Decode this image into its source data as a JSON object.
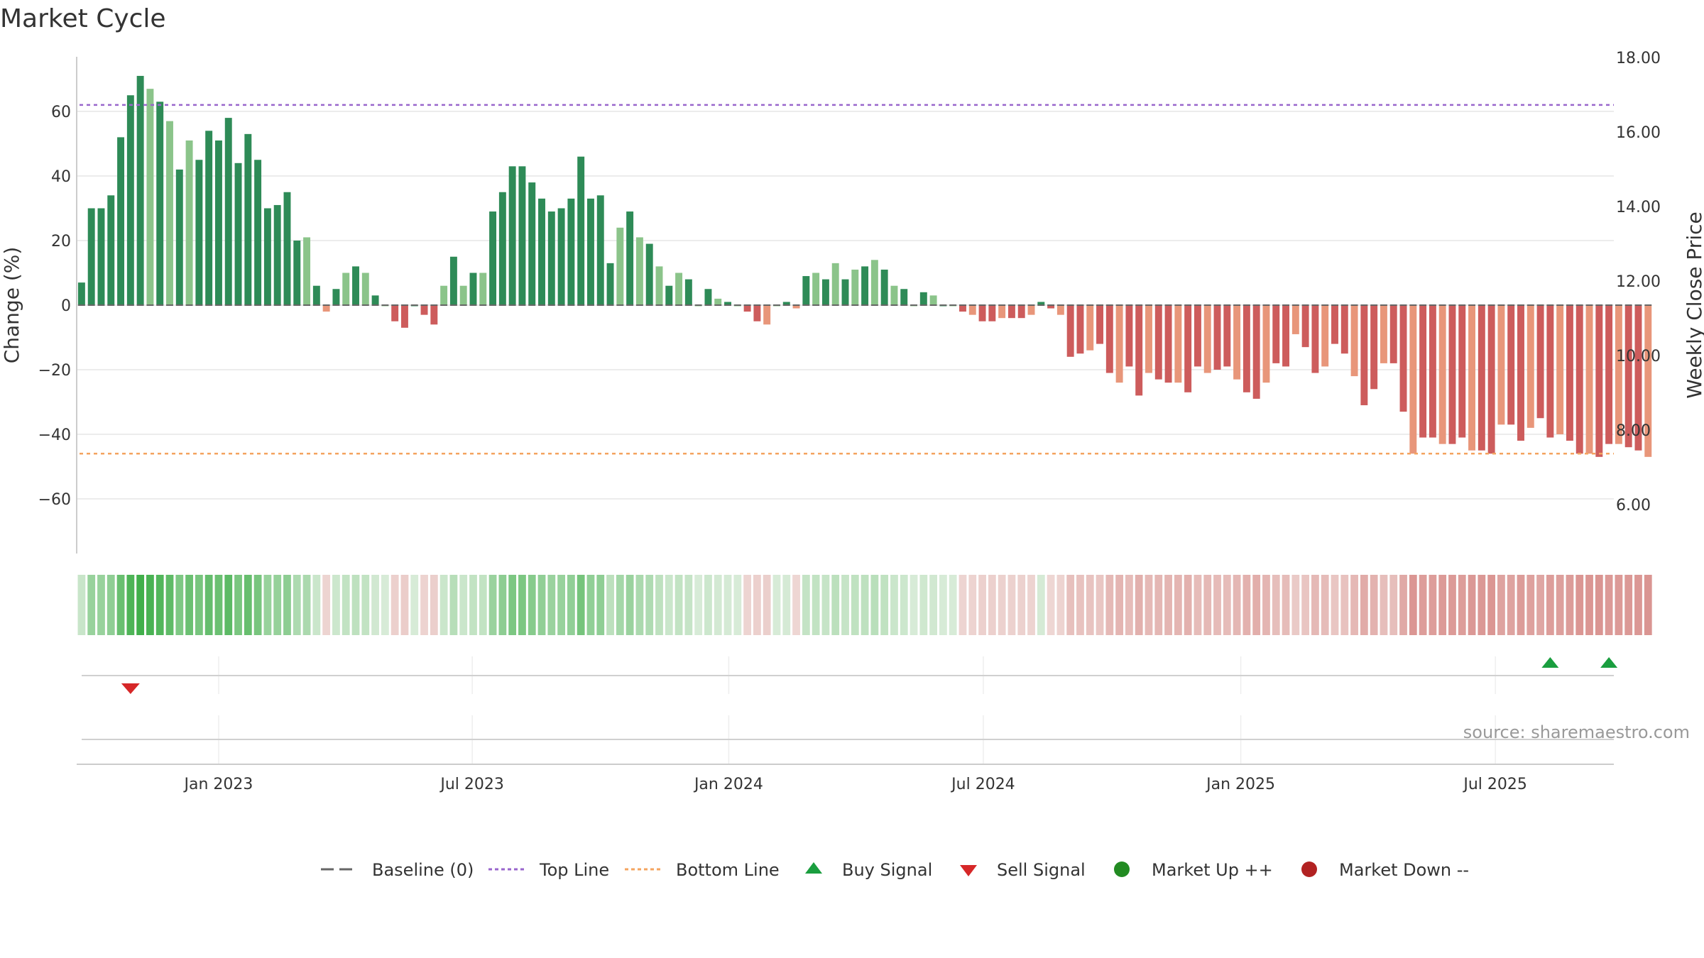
{
  "chart_data": {
    "type": "bar",
    "title": "Market Cycle",
    "ylabel": "Change (%)",
    "y2label": "Weekly Close Price",
    "ylim": [
      -77,
      77
    ],
    "y2lim": [
      4.85,
      18.25
    ],
    "yticks": [
      "60",
      "40",
      "20",
      "0",
      "−20",
      "−40",
      "−60"
    ],
    "y2ticks": [
      "18.00",
      "16.00",
      "14.00",
      "12.00",
      "10.00",
      "8.00",
      "6.00"
    ],
    "xticks": [
      "Jan 2023",
      "Jul 2023",
      "Jan 2024",
      "Jul 2024",
      "Jan 2025",
      "Jul 2025"
    ],
    "xrange_weeks": 157,
    "xtick_weeks": [
      14.5,
      40.4,
      66.6,
      92.6,
      118.9,
      144.9
    ],
    "top_line": 62,
    "bottom_line": -46,
    "baseline": 0,
    "series": [
      {
        "name": "Change (%)",
        "values": [
          7,
          30,
          30,
          34,
          52,
          65,
          71,
          67,
          63,
          57,
          42,
          51,
          45,
          54,
          51,
          58,
          44,
          53,
          45,
          30,
          31,
          35,
          20,
          21,
          6,
          -2,
          5,
          10,
          12,
          10,
          3,
          0,
          -5,
          -7,
          0,
          -3,
          -6,
          6,
          15,
          6,
          10,
          10,
          29,
          35,
          43,
          43,
          38,
          33,
          29,
          30,
          33,
          46,
          33,
          34,
          13,
          24,
          29,
          21,
          19,
          12,
          6,
          10,
          8,
          0,
          5,
          2,
          1,
          0,
          -2,
          -5,
          -6,
          0,
          1,
          -1,
          9,
          10,
          8,
          13,
          8,
          11,
          12,
          14,
          11,
          6,
          5,
          0,
          4,
          3,
          0,
          0,
          -2,
          -3,
          -5,
          -5,
          -4,
          -4,
          -4,
          -3,
          1,
          -1,
          -3,
          -16,
          -15,
          -14,
          -12,
          -21,
          -24,
          -19,
          -28,
          -21,
          -23,
          -24,
          -24,
          -27,
          -19,
          -21,
          -20,
          -19,
          -23,
          -27,
          -29,
          -24,
          -18,
          -19,
          -9,
          -13,
          -21,
          -19,
          -12,
          -15,
          -22,
          -31,
          -26,
          -18,
          -18,
          -33,
          -46,
          -41,
          -41,
          -43,
          -43,
          -41,
          -45,
          -45,
          -46,
          -37,
          -37,
          -42,
          -38,
          -35,
          -41,
          -40,
          -42,
          -46,
          -46,
          -47,
          -43,
          -43,
          -44,
          -45,
          -47
        ]
      }
    ],
    "signals": [
      {
        "name": "Sell Signal",
        "week": 5.5
      },
      {
        "name": "Buy Signal",
        "week": 150.5
      },
      {
        "name": "Buy Signal",
        "week": 156.5
      }
    ],
    "colors": {
      "up_strong": "#2e8b57",
      "up_weak": "#8bc48a",
      "down_strong": "#cd5c5c",
      "down_weak": "#e8967a",
      "top_line": "#9966cc",
      "bottom_line": "#f4a460",
      "buy": "#1a9e3f",
      "sell": "#d62728",
      "market_up": "#228b22",
      "market_down": "#b22222",
      "baseline": "#666666"
    },
    "legend": [
      {
        "label": "Baseline (0)",
        "marker": "dash"
      },
      {
        "label": "Top Line",
        "marker": "dot-purple"
      },
      {
        "label": "Bottom Line",
        "marker": "dot-orange"
      },
      {
        "label": "Buy Signal",
        "marker": "triangle-up"
      },
      {
        "label": "Sell Signal",
        "marker": "triangle-down"
      },
      {
        "label": "Market Up ++",
        "marker": "circle-green"
      },
      {
        "label": "Market Down --",
        "marker": "circle-red"
      }
    ],
    "legend_position": "bottom",
    "grid": true
  },
  "source_text": "source: sharemaestro.com"
}
